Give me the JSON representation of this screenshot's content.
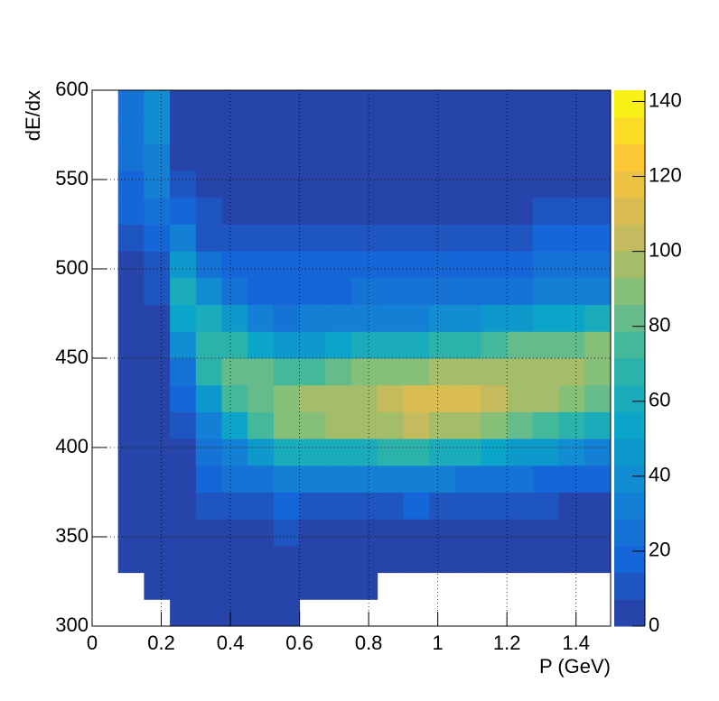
{
  "chart_data": {
    "type": "heatmap",
    "xlabel": "P (GeV)",
    "ylabel": "dE/dx",
    "xbins": [
      0,
      0.075,
      0.15,
      0.225,
      0.3,
      0.375,
      0.45,
      0.525,
      0.6,
      0.675,
      0.75,
      0.825,
      0.9,
      0.975,
      1.05,
      1.125,
      1.2,
      1.275,
      1.35,
      1.425,
      1.5
    ],
    "ybins": [
      300,
      315,
      330,
      345,
      360,
      375,
      390,
      405,
      420,
      435,
      450,
      465,
      480,
      495,
      510,
      525,
      540,
      555,
      570,
      585,
      600
    ],
    "z": [
      [
        0,
        0,
        0,
        1,
        1,
        1,
        1,
        1,
        0,
        0,
        0,
        0,
        0,
        0,
        0,
        0,
        0,
        0,
        0,
        0
      ],
      [
        0,
        0,
        1,
        1,
        1,
        2,
        1,
        2,
        1,
        1,
        1,
        0,
        0,
        0,
        0,
        0,
        0,
        0,
        0,
        0
      ],
      [
        0,
        1,
        1,
        1,
        2,
        3,
        2,
        3,
        2,
        2,
        2,
        1,
        1,
        1,
        1,
        1,
        1,
        1,
        1,
        1
      ],
      [
        0,
        1,
        1,
        1,
        4,
        6,
        5,
        8,
        6,
        5,
        5,
        5,
        5,
        4,
        4,
        3,
        3,
        3,
        2,
        2
      ],
      [
        0,
        1,
        1,
        2,
        8,
        12,
        12,
        18,
        14,
        13,
        13,
        14,
        15,
        12,
        11,
        10,
        9,
        8,
        7,
        6
      ],
      [
        0,
        1,
        1,
        4,
        15,
        22,
        25,
        35,
        30,
        30,
        30,
        32,
        35,
        30,
        28,
        25,
        22,
        20,
        18,
        16
      ],
      [
        0,
        1,
        1,
        6,
        22,
        35,
        45,
        60,
        60,
        60,
        60,
        65,
        70,
        62,
        58,
        52,
        48,
        45,
        40,
        35
      ],
      [
        0,
        1,
        2,
        10,
        30,
        55,
        75,
        88,
        92,
        95,
        95,
        100,
        105,
        100,
        95,
        88,
        80,
        75,
        68,
        60
      ],
      [
        0,
        2,
        2,
        15,
        45,
        75,
        85,
        90,
        95,
        100,
        100,
        105,
        110,
        110,
        110,
        105,
        100,
        95,
        90,
        82
      ],
      [
        0,
        2,
        3,
        25,
        65,
        80,
        80,
        75,
        78,
        85,
        88,
        90,
        90,
        95,
        100,
        100,
        100,
        100,
        95,
        90
      ],
      [
        0,
        2,
        4,
        40,
        70,
        70,
        55,
        50,
        50,
        55,
        58,
        60,
        60,
        65,
        70,
        75,
        80,
        82,
        85,
        88
      ],
      [
        0,
        3,
        6,
        55,
        60,
        45,
        32,
        28,
        30,
        32,
        33,
        34,
        35,
        38,
        40,
        45,
        48,
        52,
        55,
        60
      ],
      [
        0,
        4,
        8,
        60,
        40,
        25,
        20,
        18,
        20,
        21,
        22,
        22,
        22,
        24,
        25,
        27,
        28,
        30,
        32,
        35
      ],
      [
        0,
        6,
        12,
        50,
        22,
        15,
        15,
        15,
        16,
        17,
        18,
        18,
        18,
        19,
        20,
        20,
        21,
        22,
        22,
        24
      ],
      [
        0,
        10,
        18,
        35,
        12,
        10,
        10,
        10,
        11,
        11,
        12,
        12,
        12,
        12,
        13,
        14,
        14,
        15,
        15,
        16
      ],
      [
        0,
        15,
        25,
        20,
        8,
        6,
        6,
        6,
        6,
        6,
        6,
        6,
        6,
        6,
        6,
        7,
        7,
        8,
        8,
        8
      ],
      [
        0,
        20,
        30,
        10,
        5,
        4,
        4,
        4,
        4,
        4,
        4,
        4,
        4,
        4,
        4,
        4,
        5,
        5,
        5,
        5
      ],
      [
        0,
        22,
        35,
        6,
        3,
        3,
        3,
        3,
        3,
        3,
        3,
        3,
        3,
        3,
        3,
        3,
        3,
        3,
        3,
        3
      ],
      [
        0,
        25,
        40,
        4,
        3,
        2,
        2,
        2,
        2,
        2,
        2,
        2,
        2,
        2,
        2,
        2,
        2,
        2,
        2,
        2
      ],
      [
        0,
        25,
        40,
        3,
        2,
        2,
        2,
        2,
        2,
        2,
        2,
        2,
        2,
        2,
        2,
        2,
        2,
        2,
        2,
        2
      ]
    ],
    "xlim": [
      0,
      1.5
    ],
    "ylim": [
      300,
      600
    ],
    "zlim": [
      0,
      143
    ],
    "xticks": [
      0,
      0.2,
      0.4,
      0.6,
      0.8,
      1,
      1.2,
      1.4
    ],
    "yticks": [
      300,
      350,
      400,
      450,
      500,
      550,
      600
    ],
    "zticks": [
      0,
      20,
      40,
      60,
      80,
      100,
      120,
      140
    ],
    "colorscale": [
      "#2c3c9f",
      "#1566d8",
      "#1486d4",
      "#0aa5c8",
      "#33b6a4",
      "#86bf78",
      "#d2ba58",
      "#fbc735",
      "#f9fb0e"
    ],
    "grid": true
  }
}
